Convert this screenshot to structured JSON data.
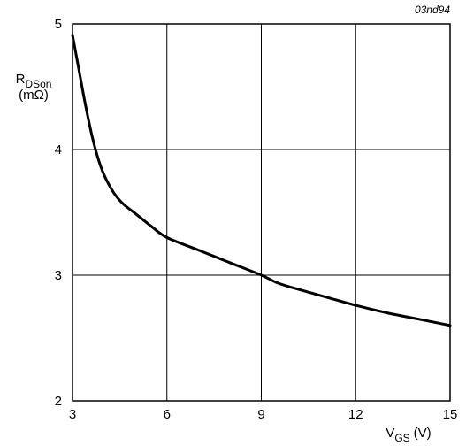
{
  "chart_data": {
    "type": "line",
    "title": "",
    "figure_ref": "03nd94",
    "xlabel": {
      "main": "V",
      "sub": "GS",
      "unit": "(V)"
    },
    "ylabel": {
      "main": "R",
      "sub": "DSon",
      "unit": "(mΩ)"
    },
    "xlim": [
      3,
      15
    ],
    "ylim": [
      2,
      5
    ],
    "xticks": [
      3,
      6,
      9,
      12,
      15
    ],
    "yticks": [
      2,
      3,
      4,
      5
    ],
    "grid": true,
    "legend": "none",
    "series": [
      {
        "color": "#000000",
        "x": [
          3.0,
          3.2,
          3.4,
          3.6,
          3.8,
          4.0,
          4.3,
          4.6,
          5.0,
          5.5,
          6.0,
          7.0,
          8.0,
          9.0,
          9.5,
          10.0,
          11.0,
          12.0,
          13.0,
          14.0,
          15.0
        ],
        "y": [
          4.91,
          4.64,
          4.37,
          4.13,
          3.94,
          3.8,
          3.66,
          3.57,
          3.49,
          3.39,
          3.3,
          3.2,
          3.1,
          3.0,
          2.94,
          2.9,
          2.83,
          2.76,
          2.7,
          2.65,
          2.6
        ]
      }
    ]
  }
}
